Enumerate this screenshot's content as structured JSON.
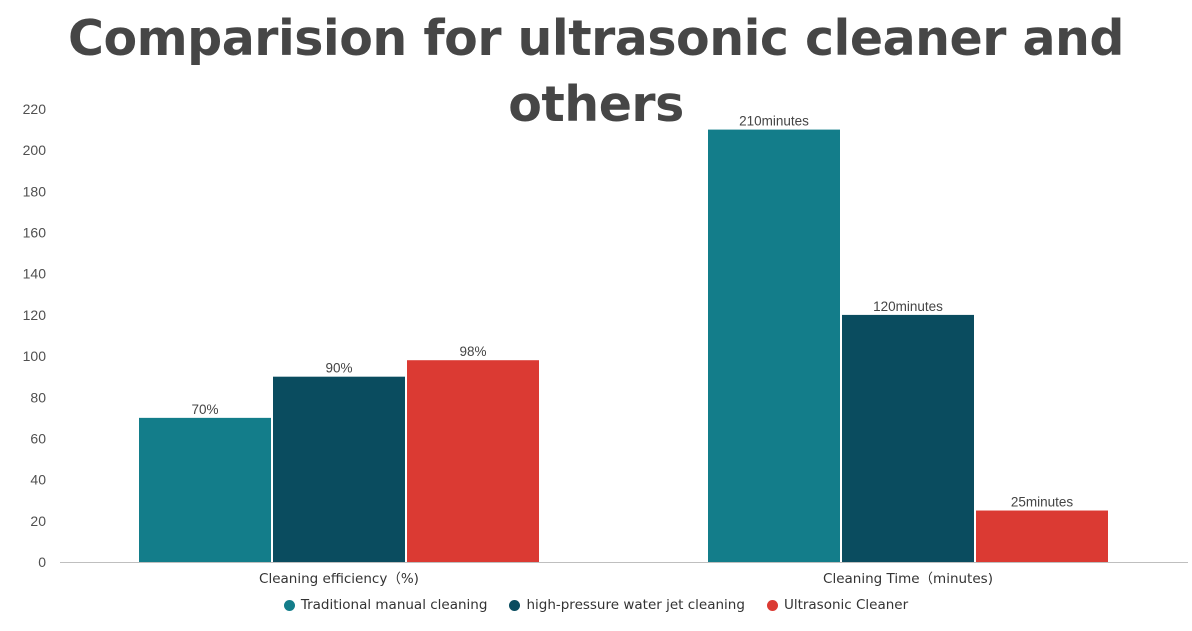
{
  "chart_data": {
    "type": "bar",
    "title": "Comparision for ultrasonic cleaner and others",
    "categories": [
      "Cleaning efficiency（%)",
      "Cleaning Time（minutes)"
    ],
    "series": [
      {
        "name": "Traditional manual cleaning",
        "color": "#137d8a",
        "values": [
          70,
          210
        ],
        "data_labels": [
          "70%",
          "210minutes"
        ]
      },
      {
        "name": "high-pressure water jet cleaning",
        "color": "#0a4c5f",
        "values": [
          90,
          120
        ],
        "data_labels": [
          "90%",
          "120minutes"
        ]
      },
      {
        "name": "Ultrasonic Cleaner",
        "color": "#db3a33",
        "values": [
          98,
          25
        ],
        "data_labels": [
          "98%",
          "25minutes"
        ]
      }
    ],
    "ylim": [
      0,
      220
    ],
    "yticks": [
      "0",
      "20",
      "40",
      "60",
      "80",
      "100",
      "120",
      "140",
      "160",
      "180",
      "200",
      "220"
    ],
    "xlabel": "",
    "ylabel": "",
    "grid": false,
    "legend_position": "bottom"
  }
}
